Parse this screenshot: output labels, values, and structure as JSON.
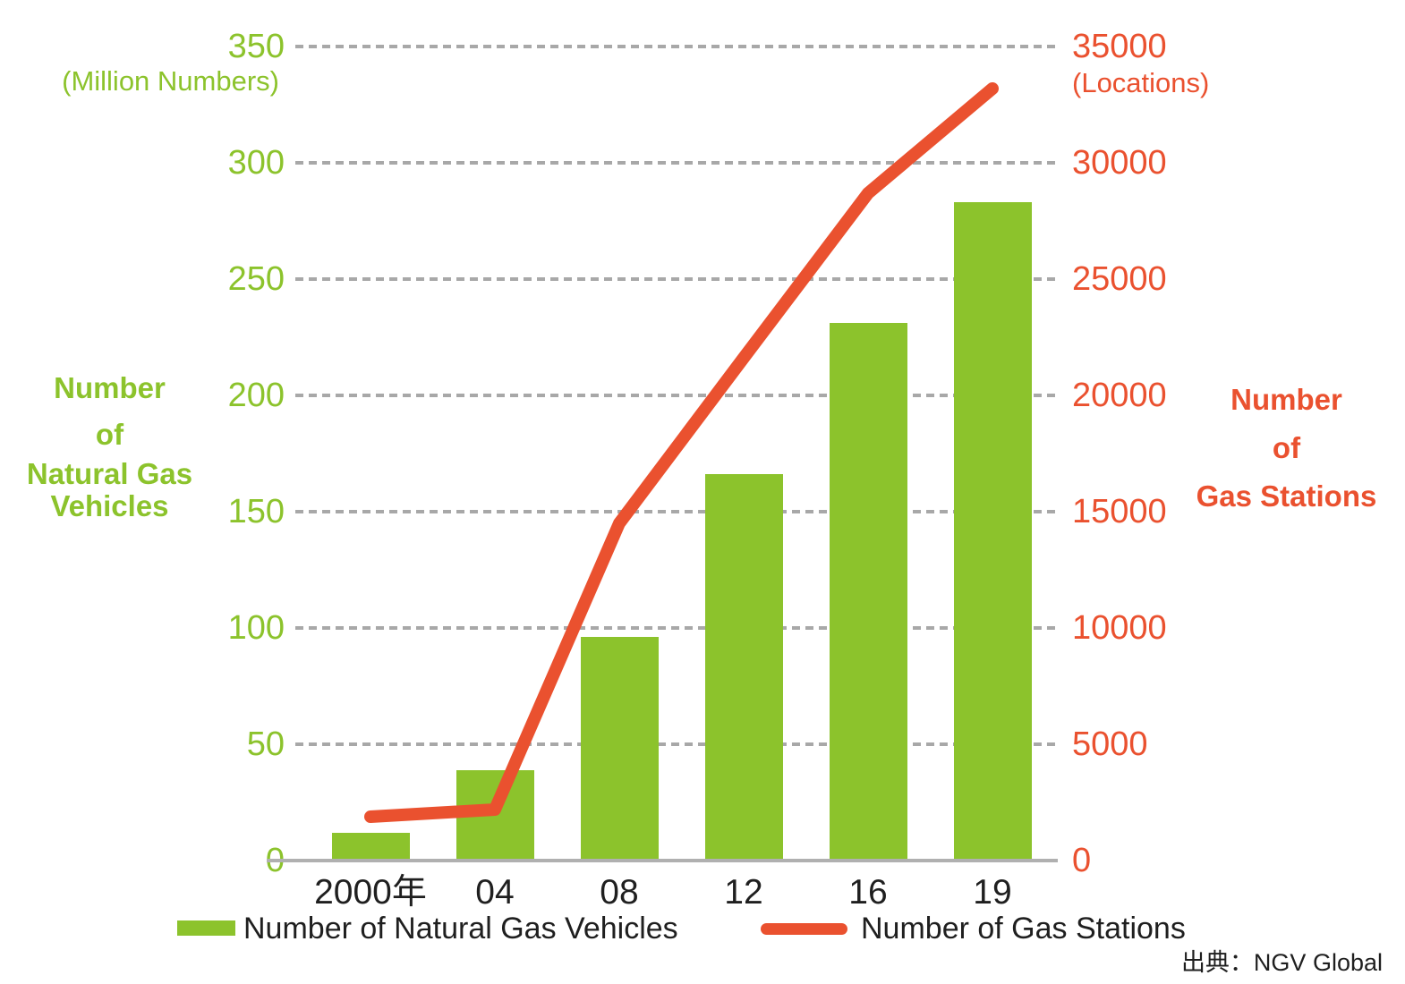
{
  "chart_data": {
    "type": "bar",
    "subtype": "combo-bar-line-dual-axis",
    "categories": [
      "2000年",
      "04",
      "08",
      "12",
      "16",
      "19"
    ],
    "series": [
      {
        "name": "Number of Natural Gas Vehicles",
        "type": "bar",
        "axis": "left",
        "color": "#8cc32c",
        "values": [
          12,
          39,
          96,
          166,
          231,
          283
        ]
      },
      {
        "name": "Number of Gas Stations",
        "type": "line",
        "axis": "right",
        "color": "#ea512f",
        "values": [
          1900,
          2200,
          14500,
          21600,
          28700,
          33200
        ]
      }
    ],
    "left_axis": {
      "unit_label": "(Million Numbers)",
      "title": "Number of Natural Gas Vehicles",
      "title_lines": [
        "Number",
        "of",
        "Natural Gas Vehicles"
      ],
      "ticks": [
        350,
        300,
        250,
        200,
        150,
        100,
        50,
        0
      ],
      "min": 0,
      "max": 350,
      "color": "#8cc32c"
    },
    "right_axis": {
      "unit_label": "(Locations)",
      "title": "Number of Gas Stations",
      "title_lines": [
        "Number",
        "of",
        "Gas Stations"
      ],
      "ticks": [
        35000,
        30000,
        25000,
        20000,
        15000,
        10000,
        5000,
        0
      ],
      "min": 0,
      "max": 35000,
      "color": "#ea512f"
    },
    "grid": "horizontal-dashed",
    "grid_color": "#a8a8a8",
    "axis_line_color": "#b0b0b0",
    "text_color": "#1f1f1f",
    "legend_position": "bottom",
    "source": "出典：NGV Global"
  },
  "legend": {
    "bar_label": "Number of Natural Gas Vehicles",
    "line_label": "Number of Gas Stations"
  },
  "source_text": "出典：NGV Global"
}
